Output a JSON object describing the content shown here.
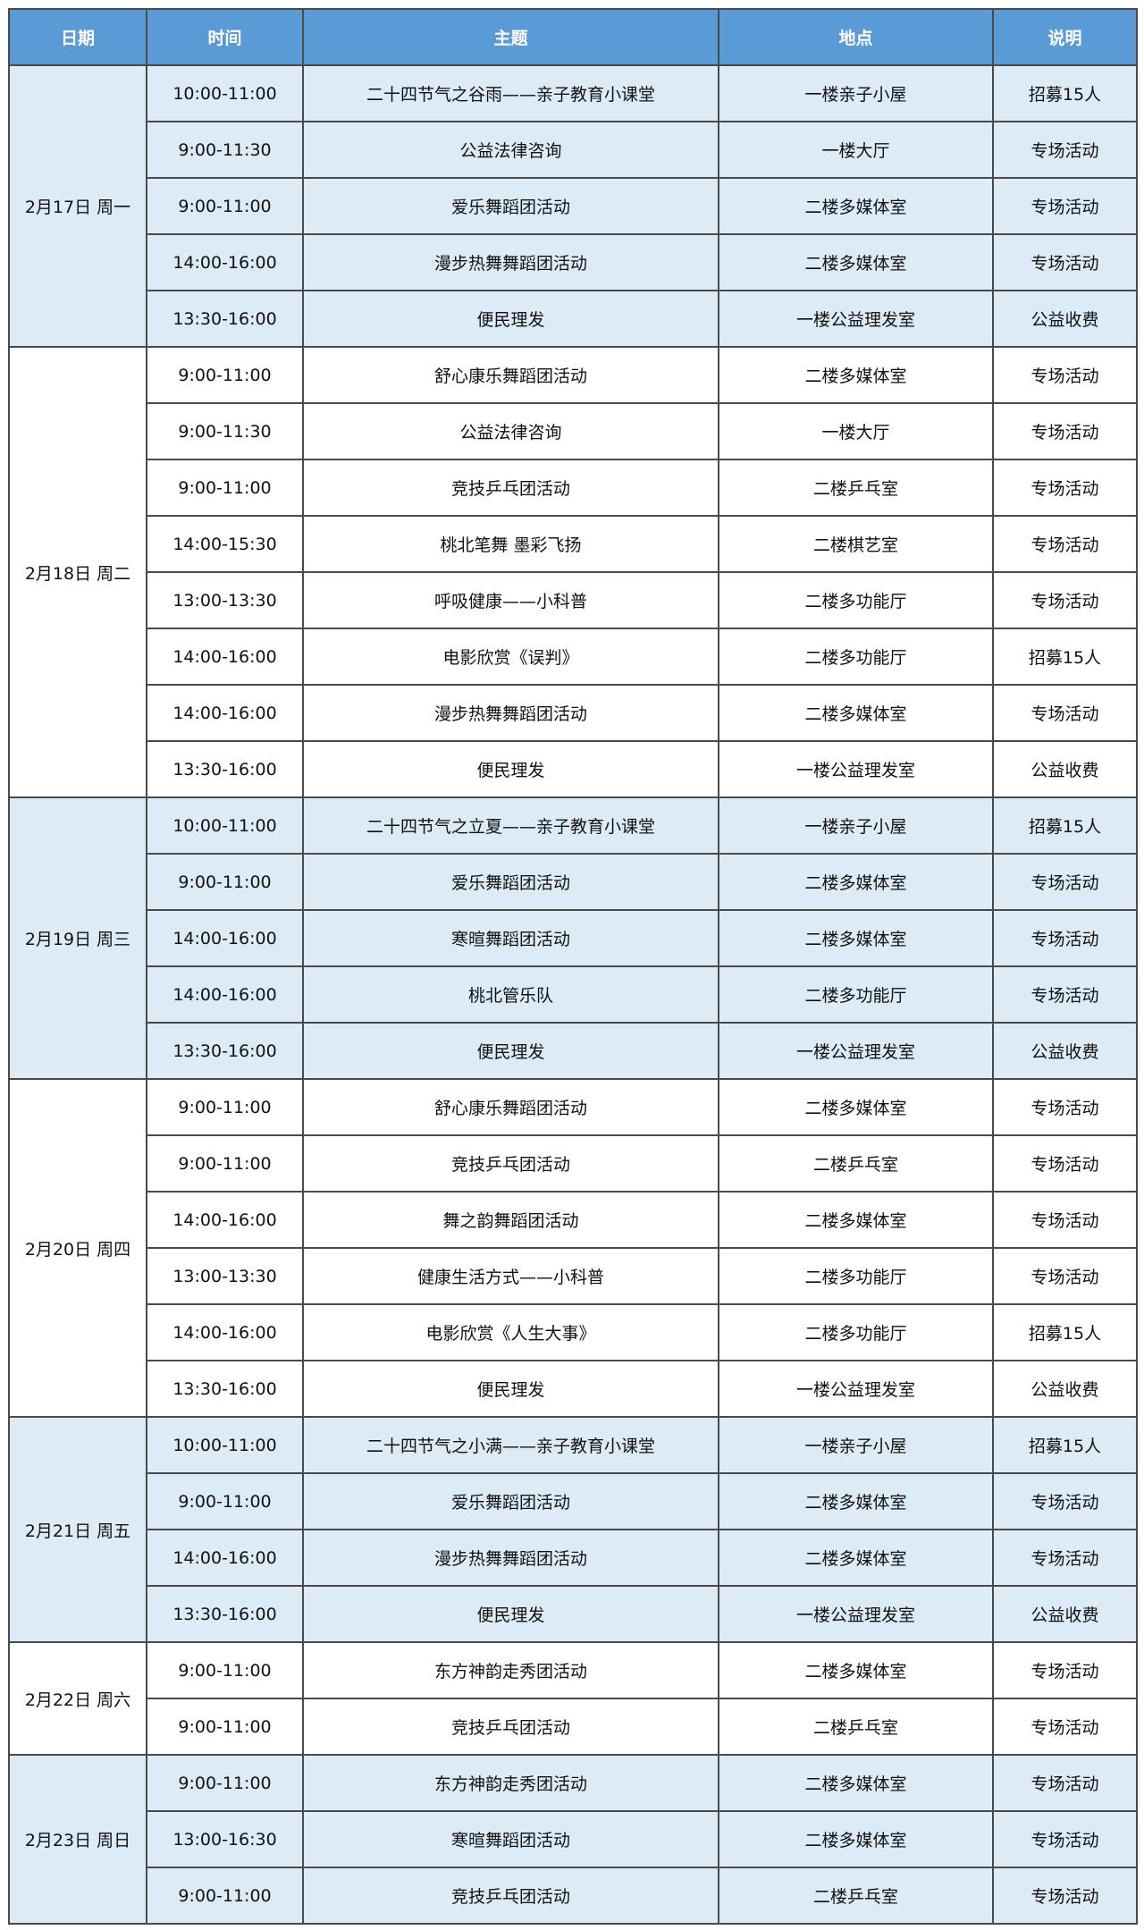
{
  "header": [
    "日期",
    "时间",
    "主题",
    "地点",
    "说明"
  ],
  "colors": {
    "header_bg": "#5b9bd5",
    "shaded_row": "#ddebf7",
    "border": "#4a4a4a"
  },
  "groups": [
    {
      "date": "2月17日 周一",
      "rows": [
        [
          "10:00-11:00",
          "二十四节气之谷雨——亲子教育小课堂",
          "一楼亲子小屋",
          "招募15人"
        ],
        [
          "9:00-11:30",
          "公益法律咨询",
          "一楼大厅",
          "专场活动"
        ],
        [
          "9:00-11:00",
          "爱乐舞蹈团活动",
          "二楼多媒体室",
          "专场活动"
        ],
        [
          "14:00-16:00",
          "漫步热舞舞蹈团活动",
          "二楼多媒体室",
          "专场活动"
        ],
        [
          "13:30-16:00",
          "便民理发",
          "一楼公益理发室",
          "公益收费"
        ]
      ]
    },
    {
      "date": "2月18日 周二",
      "rows": [
        [
          "9:00-11:00",
          "舒心康乐舞蹈团活动",
          "二楼多媒体室",
          "专场活动"
        ],
        [
          "9:00-11:30",
          "公益法律咨询",
          "一楼大厅",
          "专场活动"
        ],
        [
          "9:00-11:00",
          "竞技乒乓团活动",
          "二楼乒乓室",
          "专场活动"
        ],
        [
          "14:00-15:30",
          "桃北笔舞 墨彩飞扬",
          "二楼棋艺室",
          "专场活动"
        ],
        [
          "13:00-13:30",
          "呼吸健康——小科普",
          "二楼多功能厅",
          "专场活动"
        ],
        [
          "14:00-16:00",
          "电影欣赏《误判》",
          "二楼多功能厅",
          "招募15人"
        ],
        [
          "14:00-16:00",
          "漫步热舞舞蹈团活动",
          "二楼多媒体室",
          "专场活动"
        ],
        [
          "13:30-16:00",
          "便民理发",
          "一楼公益理发室",
          "公益收费"
        ]
      ]
    },
    {
      "date": "2月19日 周三",
      "rows": [
        [
          "10:00-11:00",
          "二十四节气之立夏——亲子教育小课堂",
          "一楼亲子小屋",
          "招募15人"
        ],
        [
          "9:00-11:00",
          "爱乐舞蹈团活动",
          "二楼多媒体室",
          "专场活动"
        ],
        [
          "14:00-16:00",
          "寒暄舞蹈团活动",
          "二楼多媒体室",
          "专场活动"
        ],
        [
          "14:00-16:00",
          "桃北管乐队",
          "二楼多功能厅",
          "专场活动"
        ],
        [
          "13:30-16:00",
          "便民理发",
          "一楼公益理发室",
          "公益收费"
        ]
      ]
    },
    {
      "date": "2月20日 周四",
      "rows": [
        [
          "9:00-11:00",
          "舒心康乐舞蹈团活动",
          "二楼多媒体室",
          "专场活动"
        ],
        [
          "9:00-11:00",
          "竞技乒乓团活动",
          "二楼乒乓室",
          "专场活动"
        ],
        [
          "14:00-16:00",
          "舞之韵舞蹈团活动",
          "二楼多媒体室",
          "专场活动"
        ],
        [
          "13:00-13:30",
          "健康生活方式——小科普",
          "二楼多功能厅",
          "专场活动"
        ],
        [
          "14:00-16:00",
          "电影欣赏《人生大事》",
          "二楼多功能厅",
          "招募15人"
        ],
        [
          "13:30-16:00",
          "便民理发",
          "一楼公益理发室",
          "公益收费"
        ]
      ]
    },
    {
      "date": "2月21日 周五",
      "rows": [
        [
          "10:00-11:00",
          "二十四节气之小满——亲子教育小课堂",
          "一楼亲子小屋",
          "招募15人"
        ],
        [
          "9:00-11:00",
          "爱乐舞蹈团活动",
          "二楼多媒体室",
          "专场活动"
        ],
        [
          "14:00-16:00",
          "漫步热舞舞蹈团活动",
          "二楼多媒体室",
          "专场活动"
        ],
        [
          "13:30-16:00",
          "便民理发",
          "一楼公益理发室",
          "公益收费"
        ]
      ]
    },
    {
      "date": "2月22日 周六",
      "rows": [
        [
          "9:00-11:00",
          "东方神韵走秀团活动",
          "二楼多媒体室",
          "专场活动"
        ],
        [
          "9:00-11:00",
          "竞技乒乓团活动",
          "二楼乒乓室",
          "专场活动"
        ]
      ]
    },
    {
      "date": "2月23日 周日",
      "rows": [
        [
          "9:00-11:00",
          "东方神韵走秀团活动",
          "二楼多媒体室",
          "专场活动"
        ],
        [
          "13:00-16:30",
          "寒暄舞蹈团活动",
          "二楼多媒体室",
          "专场活动"
        ],
        [
          "9:00-11:00",
          "竞技乒乓团活动",
          "二楼乒乓室",
          "专场活动"
        ]
      ]
    }
  ]
}
